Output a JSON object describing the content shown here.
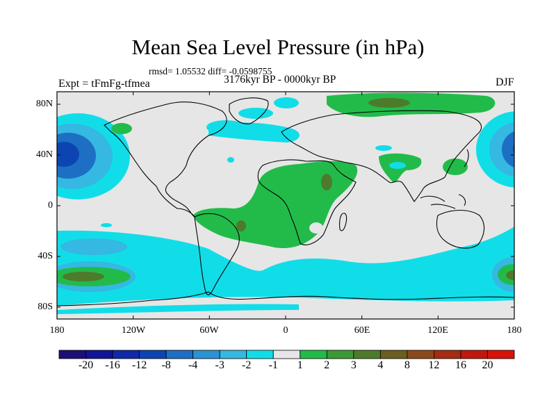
{
  "figure": {
    "title": "Mean Sea Level Pressure (in hPa)",
    "stats": "rmsd= 1.05532 diff= -0.0598755",
    "experiment": "Expt = tFmFg-tfmea",
    "period": "3176kyr BP - 0000kyr BP",
    "season": "DJF"
  },
  "axes": {
    "lat_ticks": [
      "80N",
      "40N",
      "0",
      "40S",
      "80S"
    ],
    "lon_ticks": [
      "180",
      "120W",
      "60W",
      "0",
      "60E",
      "120E",
      "180"
    ]
  },
  "colorbar": {
    "labels": [
      "-20",
      "-16",
      "-12",
      "-8",
      "-4",
      "-3",
      "-2",
      "-1",
      "1",
      "2",
      "3",
      "4",
      "8",
      "12",
      "16",
      "20"
    ],
    "colors": [
      "#1c1075",
      "#101496",
      "#0f2aa8",
      "#0c45b2",
      "#1d6fc4",
      "#2b93d4",
      "#35b8e2",
      "#11dde8",
      "#e6e6e6",
      "#22bb4a",
      "#3c9a35",
      "#4e7a2c",
      "#6b5e20",
      "#8b4a1a",
      "#a52b12",
      "#c0180c",
      "#d9120a"
    ]
  },
  "map_colors": {
    "neutral": "#e6e6e6",
    "cyan": "#11dde8",
    "light_blue": "#35b8e2",
    "blue": "#1d6fc4",
    "dark_blue": "#0c45b2",
    "green": "#22bb4a",
    "dark_green": "#3c9a35",
    "olive": "#4e7a2c"
  }
}
